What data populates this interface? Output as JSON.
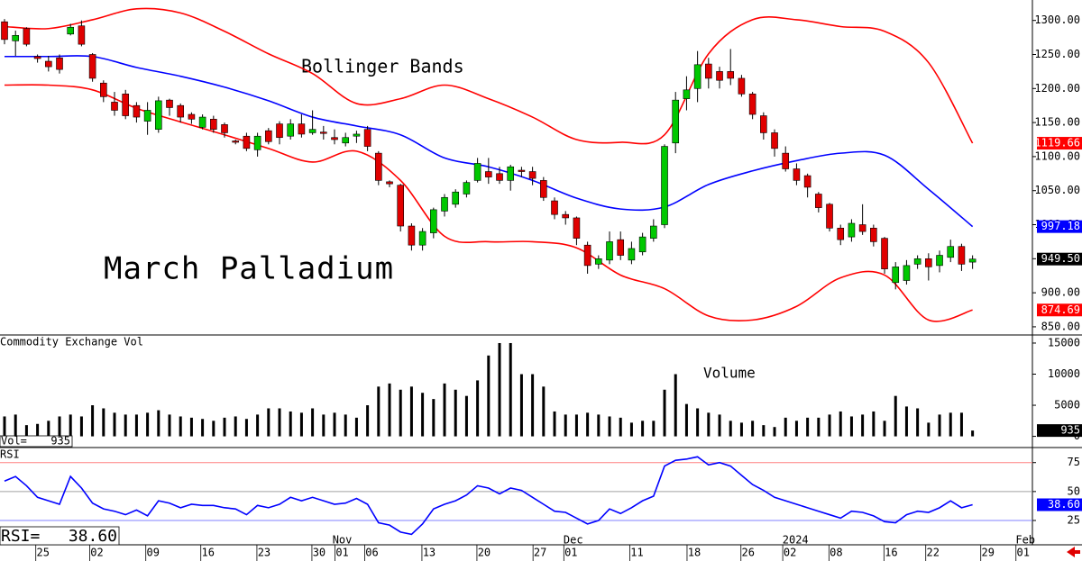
{
  "chart_data": [
    {
      "type": "candlestick",
      "annotations": [
        "Bollinger Bands",
        "March Palladium"
      ],
      "xlim": [
        -0.41,
        93.44
      ],
      "ylim": [
        838,
        1330
      ],
      "yticks": [
        {
          "value": 1300,
          "label": "1300.00"
        },
        {
          "value": 1250,
          "label": "1250.00"
        },
        {
          "value": 1200,
          "label": "1200.00"
        },
        {
          "value": 1150,
          "label": "1150.00"
        },
        {
          "value": 1100,
          "label": "1100.00"
        },
        {
          "value": 1050,
          "label": "1050.00"
        },
        {
          "value": 1000,
          "label": "1000.00"
        },
        {
          "value": 950,
          "label": "950.00"
        },
        {
          "value": 900,
          "label": "900.00"
        },
        {
          "value": 850,
          "label": "850.00"
        }
      ],
      "up_color": "#00c800",
      "down_color": "#e00000",
      "open": [
        1298,
        1270,
        1288,
        1247,
        1240,
        1245,
        1280,
        1292,
        1250,
        1208,
        1180,
        1192,
        1175,
        1152,
        1140,
        1183,
        1175,
        1162,
        1143,
        1155,
        1147,
        1123,
        1130,
        1110,
        1138,
        1148,
        1130,
        1148,
        1135,
        1136,
        1128,
        1120,
        1130,
        1140,
        1105,
        1063,
        1058,
        998,
        970,
        988,
        1020,
        1030,
        1045,
        1065,
        1078,
        1075,
        1065,
        1080,
        1078,
        1065,
        1035,
        1015,
        1010,
        970,
        942,
        948,
        978,
        948,
        960,
        980,
        1000,
        1120,
        1185,
        1200,
        1236,
        1225,
        1225,
        1215,
        1192,
        1160,
        1135,
        1105,
        1082,
        1072,
        1045,
        1030,
        995,
        982,
        1000,
        995,
        980,
        915,
        918,
        942,
        950,
        940,
        952,
        968,
        945
      ],
      "high": [
        1302,
        1285,
        1290,
        1250,
        1248,
        1250,
        1295,
        1300,
        1252,
        1212,
        1195,
        1198,
        1180,
        1180,
        1188,
        1185,
        1178,
        1165,
        1162,
        1160,
        1150,
        1125,
        1135,
        1135,
        1142,
        1152,
        1155,
        1162,
        1168,
        1145,
        1140,
        1135,
        1138,
        1145,
        1108,
        1065,
        1060,
        1002,
        995,
        1025,
        1045,
        1052,
        1065,
        1098,
        1098,
        1085,
        1088,
        1085,
        1085,
        1070,
        1040,
        1020,
        1012,
        975,
        955,
        990,
        990,
        975,
        988,
        1008,
        1118,
        1195,
        1218,
        1255,
        1245,
        1232,
        1258,
        1220,
        1195,
        1165,
        1140,
        1115,
        1090,
        1075,
        1048,
        1032,
        1000,
        1008,
        1030,
        1000,
        982,
        945,
        948,
        955,
        958,
        962,
        978,
        972,
        955
      ],
      "low": [
        1265,
        1248,
        1262,
        1238,
        1225,
        1222,
        1278,
        1262,
        1210,
        1180,
        1160,
        1155,
        1150,
        1132,
        1135,
        1160,
        1150,
        1148,
        1140,
        1135,
        1128,
        1118,
        1108,
        1100,
        1118,
        1118,
        1125,
        1128,
        1132,
        1125,
        1118,
        1115,
        1120,
        1108,
        1058,
        1055,
        990,
        962,
        962,
        980,
        1012,
        1025,
        1040,
        1062,
        1060,
        1060,
        1050,
        1070,
        1058,
        1035,
        1008,
        1000,
        970,
        928,
        935,
        942,
        948,
        942,
        955,
        975,
        995,
        1105,
        1168,
        1180,
        1200,
        1200,
        1205,
        1188,
        1155,
        1125,
        1100,
        1078,
        1058,
        1040,
        1018,
        990,
        970,
        975,
        985,
        968,
        928,
        905,
        912,
        935,
        918,
        930,
        945,
        932,
        935
      ],
      "close": [
        1272,
        1278,
        1265,
        1244,
        1232,
        1228,
        1290,
        1265,
        1215,
        1188,
        1168,
        1160,
        1158,
        1168,
        1182,
        1172,
        1158,
        1155,
        1158,
        1140,
        1135,
        1122,
        1112,
        1130,
        1122,
        1128,
        1148,
        1133,
        1140,
        1134,
        1125,
        1128,
        1133,
        1115,
        1065,
        1060,
        998,
        970,
        990,
        1022,
        1040,
        1048,
        1062,
        1090,
        1070,
        1065,
        1085,
        1078,
        1068,
        1040,
        1015,
        1010,
        980,
        940,
        950,
        975,
        955,
        965,
        982,
        998,
        1115,
        1183,
        1198,
        1235,
        1215,
        1212,
        1215,
        1192,
        1162,
        1135,
        1112,
        1082,
        1065,
        1055,
        1025,
        995,
        978,
        1002,
        990,
        975,
        935,
        938,
        940,
        950,
        938,
        955,
        968,
        942,
        949.5
      ],
      "series": [
        {
          "name": "Upper",
          "color": "#ff0000",
          "x": [
            0,
            4,
            8,
            12,
            16,
            20,
            24,
            28,
            32,
            36,
            40,
            44,
            48,
            52,
            56,
            60,
            64,
            68,
            72,
            76,
            80,
            84,
            88
          ],
          "values": [
            1291,
            1288,
            1301,
            1317,
            1311,
            1284,
            1251,
            1222,
            1178,
            1185,
            1205,
            1185,
            1158,
            1125,
            1121,
            1132,
            1251,
            1301,
            1301,
            1291,
            1284,
            1238,
            1119.66
          ]
        },
        {
          "name": "Middle",
          "color": "#0000ff",
          "x": [
            0,
            4,
            8,
            12,
            16,
            20,
            24,
            28,
            32,
            36,
            40,
            44,
            48,
            52,
            56,
            60,
            64,
            68,
            72,
            76,
            80,
            84,
            88
          ],
          "values": [
            1247,
            1247,
            1247,
            1231,
            1218,
            1202,
            1182,
            1158,
            1145,
            1132,
            1098,
            1085,
            1065,
            1039,
            1023,
            1026,
            1059,
            1079,
            1094,
            1105,
            1102,
            1052,
            997.18
          ]
        },
        {
          "name": "Lower",
          "color": "#ff0000",
          "x": [
            0,
            4,
            8,
            12,
            16,
            20,
            24,
            28,
            32,
            36,
            40,
            44,
            48,
            52,
            56,
            60,
            64,
            68,
            72,
            76,
            80,
            84,
            88
          ],
          "values": [
            1205,
            1205,
            1198,
            1171,
            1151,
            1132,
            1112,
            1092,
            1108,
            1065,
            983,
            975,
            975,
            966,
            926,
            906,
            866,
            860,
            880,
            922,
            926,
            860,
            874.69
          ]
        }
      ],
      "markers": [
        {
          "value": 1119.66,
          "label": "1119.66",
          "color": "#ff0000"
        },
        {
          "value": 997.18,
          "label": "997.18",
          "color": "#0000ff"
        },
        {
          "value": 949.5,
          "label": "949.50",
          "color": "#000000"
        },
        {
          "value": 874.69,
          "label": "874.69",
          "color": "#ff0000"
        }
      ]
    },
    {
      "type": "bar",
      "title": "Commodity Exchange Vol",
      "annotation": "Volume",
      "xlim": [
        -0.41,
        93.44
      ],
      "ylim": [
        -1800,
        16300
      ],
      "yticks": [
        15000,
        10000,
        5000,
        0
      ],
      "color": "#000000",
      "values": [
        3200,
        3500,
        1800,
        2000,
        2500,
        3200,
        3500,
        3200,
        5000,
        4500,
        3800,
        3500,
        3500,
        3800,
        4200,
        3500,
        3200,
        3000,
        2800,
        2500,
        3000,
        3200,
        2800,
        3500,
        4500,
        4500,
        4000,
        3800,
        4500,
        3500,
        3800,
        3500,
        3000,
        5000,
        8000,
        8500,
        7500,
        8000,
        7000,
        6000,
        8500,
        7500,
        6500,
        9000,
        13000,
        15000,
        15000,
        10000,
        10000,
        8000,
        4000,
        3500,
        3500,
        3800,
        3500,
        3200,
        3000,
        2200,
        2500,
        2500,
        7500,
        10000,
        5200,
        4500,
        3800,
        3500,
        2500,
        2200,
        2500,
        1800,
        1500,
        3000,
        2500,
        3000,
        3000,
        3500,
        4000,
        3200,
        3500,
        4000,
        2500,
        6500,
        4800,
        4500,
        2200,
        3500,
        3800,
        3800,
        935
      ],
      "readout_label": "Vol=",
      "readout": 935,
      "marker": {
        "value": 935,
        "color": "#000000"
      }
    },
    {
      "type": "line",
      "title": "RSI",
      "xlim": [
        -0.41,
        93.44
      ],
      "ylim": [
        4,
        88
      ],
      "yticks": [
        75,
        50,
        25
      ],
      "tick_line_colors": [
        "#ff8080",
        "#a0a0a0",
        "#8080ff"
      ],
      "color": "#0000ff",
      "values": [
        59,
        63,
        55,
        45,
        42,
        39,
        63,
        53,
        40,
        35,
        33,
        30,
        34,
        29,
        42,
        40,
        36,
        39,
        38,
        38,
        36,
        35,
        30,
        38,
        36,
        39,
        45,
        42,
        45,
        42,
        39,
        40,
        44,
        39,
        23,
        21,
        15,
        13,
        22,
        35,
        39,
        42,
        47,
        55,
        53,
        48,
        53,
        51,
        45,
        39,
        33,
        32,
        27,
        22,
        25,
        35,
        31,
        36,
        42,
        46,
        72,
        77,
        78,
        80,
        73,
        75,
        72,
        64,
        56,
        51,
        45,
        42,
        39,
        36,
        33,
        30,
        27,
        33,
        32,
        29,
        24,
        23,
        30,
        33,
        32,
        36,
        42,
        36,
        38.6
      ],
      "readout_label": "RSI=",
      "readout": {
        "value": 38.6,
        "label": "38.60"
      },
      "marker": {
        "value": 38.6,
        "label": "38.60",
        "color": "#0000ff"
      },
      "xticks": [
        {
          "value": 3.5,
          "label": "25"
        },
        {
          "value": 8.4,
          "label": "02"
        },
        {
          "value": 13.5,
          "label": "09"
        },
        {
          "value": 18.5,
          "label": "16"
        },
        {
          "value": 23.6,
          "label": "23"
        },
        {
          "value": 28.6,
          "label": "30"
        },
        {
          "value": 30.7,
          "label": "01"
        },
        {
          "value": 33.4,
          "label": "06"
        },
        {
          "value": 38.6,
          "label": "13"
        },
        {
          "value": 43.6,
          "label": "20"
        },
        {
          "value": 48.7,
          "label": "27"
        },
        {
          "value": 51.5,
          "label": "01"
        },
        {
          "value": 57.5,
          "label": "11"
        },
        {
          "value": 62.7,
          "label": "18"
        },
        {
          "value": 67.6,
          "label": "26"
        },
        {
          "value": 71.4,
          "label": "02"
        },
        {
          "value": 75.6,
          "label": "08"
        },
        {
          "value": 80.6,
          "label": "16"
        },
        {
          "value": 84.4,
          "label": "22"
        },
        {
          "value": 89.4,
          "label": "29"
        },
        {
          "value": 92.6,
          "label": "01"
        }
      ],
      "month_ticks": [
        {
          "value": 30.7,
          "label": "Nov"
        },
        {
          "value": 51.7,
          "label": "Dec"
        },
        {
          "value": 71.9,
          "label": "2024"
        },
        {
          "value": 92.8,
          "label": "Feb"
        }
      ]
    }
  ]
}
